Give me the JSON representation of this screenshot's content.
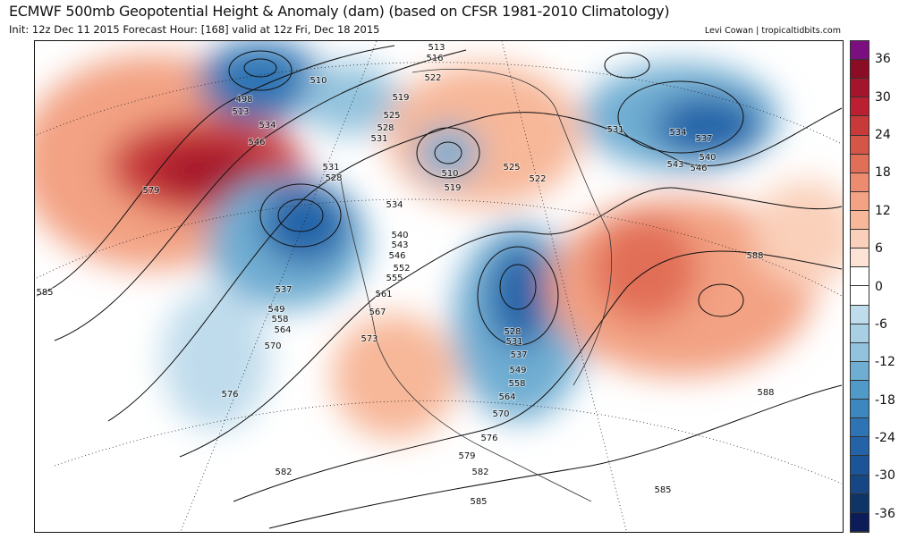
{
  "header": {
    "title": "ECMWF 500mb Geopotential Height & Anomaly (dam) (based on CFSR 1981-2010 Climatology)",
    "subtitle": "Init: 12z Dec 11 2015   Forecast Hour: [168]   valid at 12z Fri, Dec 18 2015",
    "credit": "Levi Cowan | tropicaltidbits.com"
  },
  "colorbar": {
    "ticks": [
      "36",
      "30",
      "24",
      "18",
      "12",
      "6",
      "0",
      "-6",
      "-12",
      "-18",
      "-24",
      "-30",
      "-36"
    ],
    "colors": [
      "#7b0f80",
      "#8a0d25",
      "#a4152c",
      "#ba2032",
      "#c8393a",
      "#d55647",
      "#e16e56",
      "#ec8b6f",
      "#f3a283",
      "#f7b799",
      "#fad0ba",
      "#fde3d6",
      "#ffffff",
      "#ffffff",
      "#bfdcec",
      "#a8cfe4",
      "#92c2dd",
      "#6fadd2",
      "#4f9ac8",
      "#3c87be",
      "#2e74b4",
      "#2463a8",
      "#1b5497",
      "#164683",
      "#0f3566",
      "#0b1c58"
    ]
  },
  "contour_labels": [
    "513",
    "516",
    "510",
    "498",
    "513",
    "522",
    "519",
    "525",
    "528",
    "531",
    "534",
    "546",
    "531",
    "528",
    "579",
    "510",
    "519",
    "525",
    "522",
    "531",
    "534",
    "537",
    "540",
    "543",
    "546",
    "534",
    "540",
    "543",
    "546",
    "552",
    "555",
    "561",
    "567",
    "573",
    "537",
    "549",
    "558",
    "564",
    "570",
    "576",
    "585",
    "528",
    "531",
    "537",
    "549",
    "558",
    "564",
    "570",
    "576",
    "579",
    "582",
    "585",
    "582",
    "588",
    "588",
    "585"
  ]
}
